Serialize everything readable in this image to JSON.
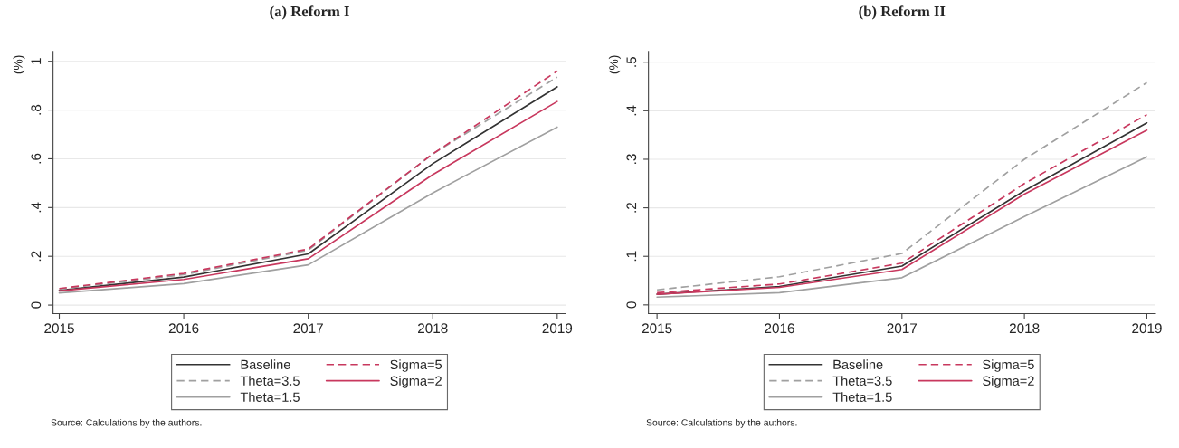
{
  "chart_data": [
    {
      "type": "line",
      "title": "(a) Reform I",
      "ylabel": "(%)",
      "x": [
        2015,
        2016,
        2017,
        2018,
        2019
      ],
      "xlim": [
        2014.95,
        2019.07
      ],
      "xticks": [
        2015,
        2016,
        2017,
        2018,
        2019
      ],
      "ylim": [
        -0.035,
        1.04
      ],
      "yticks": [
        0,
        {
          "value": 0.2,
          "label": ".2"
        },
        {
          "value": 0.4,
          "label": ".4"
        },
        {
          "value": 0.6,
          "label": ".6"
        },
        {
          "value": 0.8,
          "label": ".8"
        },
        1
      ],
      "grid": "y",
      "legend": "bottom",
      "annotations": [
        "Source: Calculations by the authors."
      ],
      "series": [
        {
          "name": "Baseline",
          "color": "#333333",
          "line_style": "solid",
          "values": [
            0.06,
            0.115,
            0.21,
            0.58,
            0.895
          ]
        },
        {
          "name": "Theta=3.5",
          "color": "#a0a0a0",
          "line_style": "dashed",
          "values": [
            0.065,
            0.125,
            0.225,
            0.62,
            0.935
          ]
        },
        {
          "name": "Theta=1.5",
          "color": "#a0a0a0",
          "line_style": "solid",
          "values": [
            0.05,
            0.088,
            0.165,
            0.46,
            0.73
          ]
        },
        {
          "name": "Sigma=5",
          "color": "#c8385e",
          "line_style": "dashed",
          "values": [
            0.068,
            0.13,
            0.23,
            0.62,
            0.96
          ]
        },
        {
          "name": "Sigma=2",
          "color": "#c8385e",
          "line_style": "solid",
          "values": [
            0.058,
            0.105,
            0.19,
            0.535,
            0.835
          ]
        }
      ]
    },
    {
      "type": "line",
      "title": "(b) Reform II",
      "ylabel": "(%)",
      "x": [
        2015,
        2016,
        2017,
        2018,
        2019
      ],
      "xlim": [
        2014.93,
        2019.07
      ],
      "xticks": [
        2015,
        2016,
        2017,
        2018,
        2019
      ],
      "ylim": [
        -0.018,
        0.522
      ],
      "yticks": [
        0,
        {
          "value": 0.1,
          "label": ".1"
        },
        {
          "value": 0.2,
          "label": ".2"
        },
        {
          "value": 0.3,
          "label": ".3"
        },
        {
          "value": 0.4,
          "label": ".4"
        },
        {
          "value": 0.5,
          "label": ".5"
        }
      ],
      "grid": "y",
      "legend": "bottom",
      "annotations": [
        "Source: Calculations by the authors."
      ],
      "series": [
        {
          "name": "Baseline",
          "color": "#333333",
          "line_style": "solid",
          "values": [
            0.022,
            0.038,
            0.08,
            0.235,
            0.375
          ]
        },
        {
          "name": "Theta=3.5",
          "color": "#a0a0a0",
          "line_style": "dashed",
          "values": [
            0.031,
            0.058,
            0.106,
            0.3,
            0.458
          ]
        },
        {
          "name": "Theta=1.5",
          "color": "#a0a0a0",
          "line_style": "solid",
          "values": [
            0.016,
            0.025,
            0.056,
            0.182,
            0.305
          ]
        },
        {
          "name": "Sigma=5",
          "color": "#c8385e",
          "line_style": "dashed",
          "values": [
            0.025,
            0.043,
            0.086,
            0.25,
            0.392
          ]
        },
        {
          "name": "Sigma=2",
          "color": "#c8385e",
          "line_style": "solid",
          "values": [
            0.022,
            0.036,
            0.073,
            0.228,
            0.36
          ]
        }
      ]
    }
  ]
}
